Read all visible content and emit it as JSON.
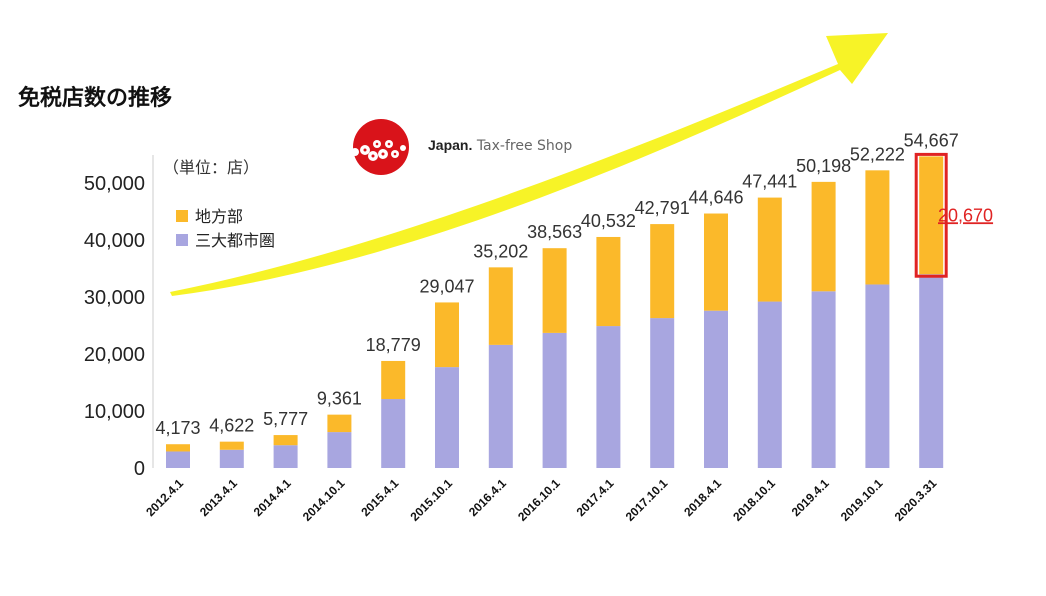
{
  "title": "免税店数の推移",
  "logo": {
    "brand": "Japan.",
    "tagline": "Tax-free Shop"
  },
  "colors": {
    "regional": "#FBB92A",
    "metro": "#A8A6E0",
    "arrow": "#F7F21B",
    "highlight": "#E02323"
  },
  "chart_data": {
    "type": "bar",
    "stacked": true,
    "unit_note": "（単位：店）",
    "categories": [
      "2012.4.1",
      "2013.4.1",
      "2014.4.1",
      "2014.10.1",
      "2015.4.1",
      "2015.10.1",
      "2016.4.1",
      "2016.10.1",
      "2017.4.1",
      "2017.10.1",
      "2018.4.1",
      "2018.10.1",
      "2019.4.1",
      "2019.10.1",
      "2020.3.31"
    ],
    "series": [
      {
        "name": "三大都市圏",
        "color": "#A8A6E0",
        "values": [
          2900,
          3200,
          4000,
          6300,
          12100,
          17700,
          21600,
          23700,
          24900,
          26300,
          27600,
          29200,
          31000,
          32200,
          33997
        ]
      },
      {
        "name": "地方部",
        "color": "#FBB92A",
        "values": [
          1273,
          1422,
          1777,
          3061,
          6679,
          11347,
          13602,
          14863,
          15632,
          16491,
          17046,
          18241,
          19198,
          20022,
          20670
        ]
      }
    ],
    "totals": [
      4173,
      4622,
      5777,
      9361,
      18779,
      29047,
      35202,
      38563,
      40532,
      42791,
      44646,
      47441,
      50198,
      52222,
      54667
    ],
    "total_labels": [
      "4,173",
      "4,622",
      "5,777",
      "9,361",
      "18,779",
      "29,047",
      "35,202",
      "38,563",
      "40,532",
      "42,791",
      "44,646",
      "47,441",
      "50,198",
      "52,222",
      "54,667"
    ],
    "ylim": [
      0,
      55000
    ],
    "yticks": [
      0,
      10000,
      20000,
      30000,
      40000,
      50000
    ],
    "ytick_labels": [
      "0",
      "10,000",
      "20,000",
      "30,000",
      "40,000",
      "50,000"
    ],
    "legend_position": "top-left",
    "annotation": {
      "category": "2020.3.31",
      "value": 20670,
      "label": "20,670"
    }
  }
}
